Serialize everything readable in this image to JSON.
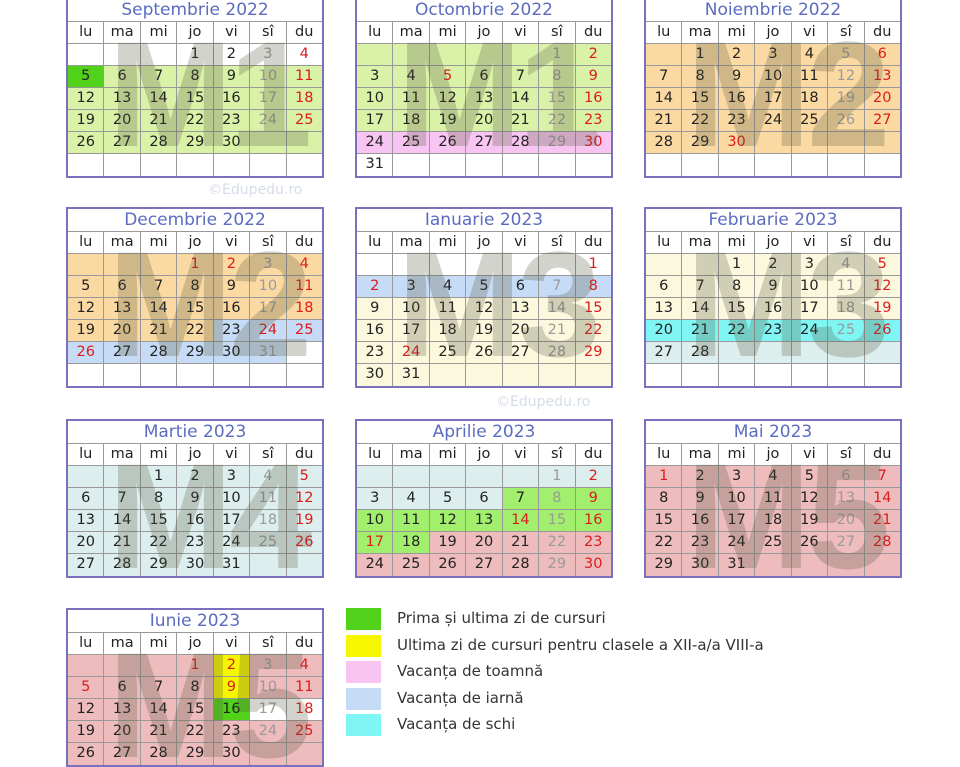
{
  "weekdays": [
    "lu",
    "ma",
    "mi",
    "jo",
    "vi",
    "sî",
    "du"
  ],
  "colors": {
    "w": "#ffffff",
    "g": "#daf2a8",
    "o": "#fbd9a2",
    "y": "#fbf8de",
    "b": "#c6dbf5",
    "p": "#f8c4f1",
    "c": "#7ff6f4",
    "t": "#dcefee",
    "l": "#a2ef6e",
    "r": "#eebcbc",
    "G": "#52d11b",
    "Y": "#f6f600",
    "title": "#5b6cc0",
    "border": "#7b70bd",
    "red": "#dd1c1c",
    "saturday": "#9a9a9a",
    "text": "#222222"
  },
  "months": [
    {
      "title": "Septembrie 2022",
      "watermark": "M1",
      "offset": 3,
      "days": 30,
      "red": [],
      "rows": [
        "wwwwwww",
        "Ggggggg",
        "ggggggg",
        "ggggggg",
        "ggggggg",
        "wwwwwww"
      ]
    },
    {
      "title": "Octombrie 2022",
      "watermark": "M1",
      "offset": 5,
      "days": 31,
      "red": [
        5
      ],
      "rows": [
        "ggggggg",
        "ggggggg",
        "ggggggg",
        "ggggggg",
        "ppppppp",
        "wwwwwww"
      ]
    },
    {
      "title": "Noiembrie 2022",
      "watermark": "M2",
      "offset": 1,
      "days": 30,
      "red": [
        30
      ],
      "rows": [
        "ooooooo",
        "ooooooo",
        "ooooooo",
        "ooooooo",
        "ooooooo",
        "wwwwwww"
      ]
    },
    {
      "title": "Decembrie 2022",
      "watermark": "M2",
      "offset": 3,
      "days": 31,
      "red": [
        1,
        2,
        24,
        26
      ],
      "rows": [
        "ooooooo",
        "ooooooo",
        "ooooooo",
        "oooobbb",
        "bbbbbbw",
        "wwwwwww"
      ]
    },
    {
      "title": "Ianuarie 2023",
      "watermark": "M3",
      "offset": 6,
      "days": 31,
      "red": [
        2,
        24
      ],
      "rows": [
        "wwwwwww",
        "bbbbbbb",
        "yyyyyyy",
        "yyyyyyy",
        "yyyyyyy",
        "yyyyyyy"
      ]
    },
    {
      "title": "Februarie 2023",
      "watermark": "M3",
      "offset": 2,
      "days": 28,
      "red": [],
      "rows": [
        "yyyyyyy",
        "yyyyyyy",
        "yyyyyyy",
        "ccccccc",
        "ttttttt",
        "wwwwwww"
      ]
    },
    {
      "title": "Martie 2023",
      "watermark": "M4",
      "offset": 2,
      "days": 31,
      "red": [],
      "rows": [
        "ttttttt",
        "ttttttt",
        "ttttttt",
        "ttttttt",
        "ttttttt"
      ]
    },
    {
      "title": "Aprilie 2023",
      "watermark": "",
      "offset": 5,
      "days": 30,
      "red": [
        14,
        17
      ],
      "rows": [
        "ttttttt",
        "ttttlll",
        "lllllll",
        "llrrrrr",
        "rrrrrrr"
      ]
    },
    {
      "title": "Mai 2023",
      "watermark": "M5",
      "offset": 0,
      "days": 31,
      "red": [
        1
      ],
      "rows": [
        "rrrrrrr",
        "rrrrrrr",
        "rrrrrrr",
        "rrrrrrr",
        "rrrrrrr"
      ]
    },
    {
      "title": "Iunie 2023",
      "watermark": "M5",
      "offset": 3,
      "days": 30,
      "red": [
        1,
        2,
        5,
        9
      ],
      "rows": [
        "rrrrYrr",
        "rrrrYrr",
        "rrrrGww",
        "rrrrrrr",
        "rrrrrrr"
      ]
    }
  ],
  "credits": [
    "©Edupedu.ro",
    "©Edupedu.ro"
  ],
  "legend": [
    {
      "color": "G",
      "label": "Prima și ultima zi de cursuri"
    },
    {
      "color": "Y",
      "label": "Ultima zi de cursuri pentru clasele a XII-a/a VIII-a"
    },
    {
      "color": "p",
      "label": "Vacanța de toamnă"
    },
    {
      "color": "b",
      "label": "Vacanța de iarnă"
    },
    {
      "color": "c",
      "label": "Vacanța de schi"
    }
  ]
}
